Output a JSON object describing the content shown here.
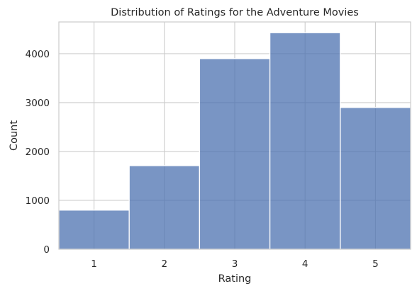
{
  "chart_data": {
    "type": "bar",
    "title": "Distribution of Ratings for the Adventure Movies",
    "xlabel": "Rating",
    "ylabel": "Count",
    "categories": [
      "1",
      "2",
      "3",
      "4",
      "5"
    ],
    "x": [
      1,
      2,
      3,
      4,
      5
    ],
    "values": [
      800,
      1710,
      3900,
      4430,
      2900
    ],
    "xlim": [
      0.5,
      5.5
    ],
    "ylim": [
      0,
      4650
    ],
    "yticks": [
      0,
      1000,
      2000,
      3000,
      4000
    ],
    "ytick_labels": [
      "0",
      "1000",
      "2000",
      "3000",
      "4000"
    ],
    "grid": true,
    "bar_color": "#4c72b0"
  }
}
